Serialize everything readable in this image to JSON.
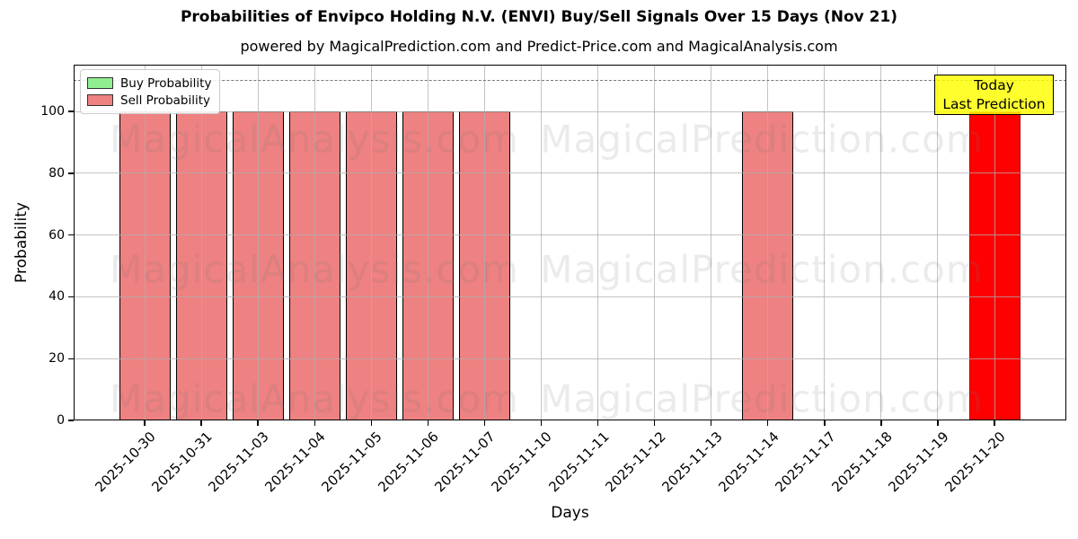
{
  "title": "Probabilities of Envipco Holding N.V. (ENVI) Buy/Sell Signals Over 15 Days (Nov 21)",
  "subtitle": "powered by MagicalPrediction.com and Predict-Price.com and MagicalAnalysis.com",
  "xlabel": "Days",
  "ylabel": "Probability",
  "legend": {
    "items": [
      {
        "label": "Buy Probability",
        "color": "#90ee90"
      },
      {
        "label": "Sell Probability",
        "color": "#ee8181"
      }
    ]
  },
  "annotation": {
    "line1": "Today",
    "line2": "Last Prediction",
    "bg_color": "#ffff00",
    "border_color": "#000000"
  },
  "watermarks": {
    "left_text": "MagicalAnalysis.com",
    "right_text": "MagicalPrediction.com"
  },
  "chart_data": {
    "type": "bar",
    "title": "Probabilities of Envipco Holding N.V. (ENVI) Buy/Sell Signals Over 15 Days (Nov 21)",
    "xlabel": "Days",
    "ylabel": "Probability",
    "categories": [
      "2025-10-30",
      "2025-10-31",
      "2025-11-03",
      "2025-11-04",
      "2025-11-05",
      "2025-11-06",
      "2025-11-07",
      "2025-11-10",
      "2025-11-11",
      "2025-11-12",
      "2025-11-13",
      "2025-11-14",
      "2025-11-17",
      "2025-11-18",
      "2025-11-19",
      "2025-11-20"
    ],
    "series": [
      {
        "name": "Buy Probability",
        "color": "#90ee90",
        "values": [
          0,
          0,
          0,
          0,
          0,
          0,
          0,
          0,
          0,
          0,
          0,
          0,
          0,
          0,
          0,
          0
        ]
      },
      {
        "name": "Sell Probability",
        "color": "#ee8181",
        "values": [
          100,
          100,
          100,
          100,
          100,
          100,
          100,
          0,
          0,
          0,
          0,
          100,
          0,
          0,
          0,
          100
        ]
      }
    ],
    "today_highlight": {
      "category": "2025-11-20",
      "series": "Sell Probability",
      "value": 100,
      "color": "#ff0000"
    },
    "yticks": [
      0,
      20,
      40,
      60,
      80,
      100
    ],
    "ylim": [
      0,
      115
    ],
    "dashed_guide_y": 110,
    "grid": true,
    "legend_position": "upper left"
  }
}
